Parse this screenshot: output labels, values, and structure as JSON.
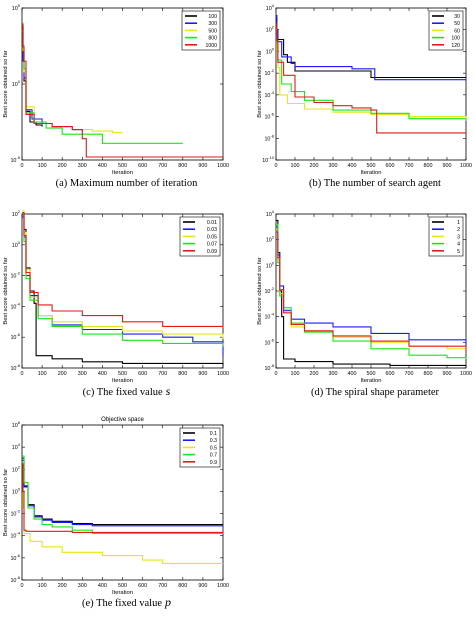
{
  "figure": {
    "captions": [
      "(a) Maximum number of iteration",
      "(b) The number of search agent",
      "(c) The fixed value",
      "(d) The spiral shape parameter",
      "(e)  The fixed value"
    ],
    "caption_symbols": [
      "",
      "",
      "s",
      "",
      "p"
    ]
  },
  "chart_data": [
    {
      "type": "line",
      "title": "",
      "xlabel": "Iteration",
      "ylabel": "Best score obtained so far",
      "xlim": [
        0,
        1000
      ],
      "xticks": [
        "0",
        "100",
        "200",
        "300",
        "400",
        "500",
        "600",
        "700",
        "800",
        "900",
        "1000"
      ],
      "ylog": true,
      "ylim_exp": [
        -5,
        5
      ],
      "yticks_exp": [
        5,
        0,
        -5
      ],
      "legend": "top-right",
      "series": [
        {
          "name": "100",
          "color": "#000000",
          "x": [
            1,
            5,
            10,
            20,
            40,
            70,
            100
          ],
          "y_exp": [
            3.7,
            2,
            0.2,
            -1.8,
            -2.5,
            -2.7,
            -2.8
          ]
        },
        {
          "name": "300",
          "color": "#1a1aff",
          "x": [
            1,
            5,
            10,
            20,
            50,
            100,
            150,
            200,
            250,
            300
          ],
          "y_exp": [
            3.8,
            1.5,
            0.4,
            -1.7,
            -2.3,
            -2.6,
            -2.8,
            -2.8,
            -3,
            -3.1
          ]
        },
        {
          "name": "500",
          "color": "#e6e619",
          "x": [
            1,
            5,
            10,
            20,
            60,
            150,
            250,
            350,
            450,
            500
          ],
          "y_exp": [
            3.5,
            2.2,
            0.8,
            -1.5,
            -2.6,
            -2.8,
            -3,
            -3.1,
            -3.2,
            -3.2
          ]
        },
        {
          "name": "800",
          "color": "#19e619",
          "x": [
            1,
            5,
            10,
            20,
            60,
            120,
            200,
            400,
            600,
            800
          ],
          "y_exp": [
            4,
            2.4,
            1,
            -1.9,
            -2.5,
            -2.9,
            -3.3,
            -3.9,
            -3.9,
            -3.9
          ]
        },
        {
          "name": "1000",
          "color": "#e61919",
          "x": [
            1,
            5,
            10,
            20,
            60,
            150,
            250,
            300,
            320,
            1000
          ],
          "y_exp": [
            3.9,
            2.5,
            1.5,
            -2,
            -2.6,
            -2.8,
            -3,
            -3.6,
            -4.8,
            -4.8
          ]
        }
      ]
    },
    {
      "type": "line",
      "title": "",
      "xlabel": "Iteration",
      "ylabel": "Best score obtained so far",
      "xlim": [
        0,
        1000
      ],
      "xticks": [
        "0",
        "100",
        "200",
        "300",
        "400",
        "500",
        "600",
        "700",
        "800",
        "900",
        "1000"
      ],
      "ylog": true,
      "ylim_exp": [
        -10,
        4
      ],
      "yticks_exp": [
        4,
        2,
        0,
        -2,
        -4,
        -6,
        -8,
        -10
      ],
      "legend": "top-right",
      "series": [
        {
          "name": "30",
          "color": "#000000",
          "x": [
            1,
            5,
            10,
            40,
            60,
            100,
            200,
            300,
            500,
            1000
          ],
          "y_exp": [
            3,
            2,
            1.1,
            -0.3,
            -1,
            -1.8,
            -1.8,
            -1.8,
            -2.4,
            -2.4
          ]
        },
        {
          "name": "50",
          "color": "#1a1aff",
          "x": [
            1,
            5,
            10,
            30,
            80,
            100,
            200,
            300,
            400,
            500,
            520,
            1000
          ],
          "y_exp": [
            3.3,
            2,
            0.9,
            -0.5,
            -1.1,
            -1.4,
            -1.4,
            -1.4,
            -1.6,
            -1.6,
            -2.6,
            -2.6
          ]
        },
        {
          "name": "60",
          "color": "#e6e619",
          "x": [
            1,
            5,
            10,
            20,
            60,
            150,
            300,
            500,
            700,
            1000
          ],
          "y_exp": [
            2,
            0,
            -1.5,
            -4,
            -4.8,
            -5.3,
            -5.6,
            -5.8,
            -6,
            -6.2
          ]
        },
        {
          "name": "100",
          "color": "#19e619",
          "x": [
            1,
            5,
            10,
            30,
            80,
            150,
            300,
            500,
            700,
            1000
          ],
          "y_exp": [
            2.3,
            0.9,
            -0.8,
            -3,
            -3.7,
            -4.5,
            -5.4,
            -5.7,
            -6.2,
            -6.4
          ]
        },
        {
          "name": "120",
          "color": "#e61919",
          "x": [
            1,
            5,
            10,
            40,
            100,
            200,
            300,
            400,
            500,
            530,
            1000
          ],
          "y_exp": [
            2.6,
            1,
            -1,
            -2.2,
            -4.2,
            -4.7,
            -5,
            -5.2,
            -5.4,
            -7.5,
            -7.5
          ]
        }
      ]
    },
    {
      "type": "line",
      "title": "",
      "xlabel": "Iteration",
      "ylabel": "Best score obtained so far",
      "xlim": [
        0,
        1000
      ],
      "xticks": [
        "0",
        "100",
        "200",
        "300",
        "400",
        "500",
        "600",
        "700",
        "800",
        "900",
        "1000"
      ],
      "ylog": true,
      "ylim_exp": [
        -8,
        2
      ],
      "yticks_exp": [
        2,
        0,
        -2,
        -4,
        -6,
        -8
      ],
      "legend": "top-right",
      "series": [
        {
          "name": "0.01",
          "color": "#000000",
          "x": [
            1,
            10,
            20,
            40,
            60,
            70,
            150,
            300,
            500,
            700,
            1000
          ],
          "y_exp": [
            2,
            1,
            -1.5,
            -3,
            -3.8,
            -7.2,
            -7.4,
            -7.6,
            -7.7,
            -7.7,
            -7.8
          ]
        },
        {
          "name": "0.03",
          "color": "#1a1aff",
          "x": [
            1,
            10,
            20,
            40,
            80,
            150,
            300,
            500,
            700,
            850,
            1000
          ],
          "y_exp": [
            1.8,
            0.5,
            -2,
            -3.3,
            -4.6,
            -5.2,
            -5.5,
            -5.8,
            -6,
            -6.3,
            -7.2
          ]
        },
        {
          "name": "0.05",
          "color": "#e6e619",
          "x": [
            1,
            10,
            20,
            40,
            80,
            150,
            300,
            500,
            700,
            1000
          ],
          "y_exp": [
            2.2,
            0.8,
            -1.6,
            -3.4,
            -4.6,
            -5,
            -5.3,
            -5.6,
            -5.8,
            -6.1
          ]
        },
        {
          "name": "0.07",
          "color": "#19e619",
          "x": [
            1,
            10,
            20,
            40,
            80,
            150,
            300,
            500,
            700,
            1000
          ],
          "y_exp": [
            1.9,
            0.2,
            -2.2,
            -3.6,
            -4.8,
            -5.3,
            -5.8,
            -6.2,
            -6.4,
            -6.6
          ]
        },
        {
          "name": "0.09",
          "color": "#e61919",
          "x": [
            1,
            10,
            20,
            40,
            80,
            150,
            300,
            500,
            700,
            1000
          ],
          "y_exp": [
            2.1,
            0.6,
            -1.8,
            -3.1,
            -3.9,
            -4.3,
            -4.6,
            -5,
            -5.3,
            -5.4
          ]
        }
      ]
    },
    {
      "type": "line",
      "title": "",
      "xlabel": "Iteration",
      "ylabel": "Best score obtained so far",
      "xlim": [
        0,
        1000
      ],
      "xticks": [
        "0",
        "100",
        "200",
        "300",
        "400",
        "500",
        "600",
        "700",
        "800",
        "900",
        "1000"
      ],
      "ylog": true,
      "ylim_exp": [
        -8,
        4
      ],
      "yticks_exp": [
        4,
        2,
        0,
        -2,
        -4,
        -6,
        -8
      ],
      "legend": "top-right",
      "series": [
        {
          "name": "1",
          "color": "#000000",
          "x": [
            1,
            10,
            20,
            30,
            40,
            100,
            300,
            600,
            1000
          ],
          "y_exp": [
            3.5,
            1,
            -2,
            -4,
            -7.3,
            -7.5,
            -7.7,
            -7.8,
            -7.8
          ]
        },
        {
          "name": "2",
          "color": "#1a1aff",
          "x": [
            1,
            10,
            20,
            40,
            80,
            150,
            300,
            500,
            700,
            1000
          ],
          "y_exp": [
            3,
            0.8,
            -1.6,
            -3.5,
            -4.2,
            -4.5,
            -4.8,
            -5.3,
            -5.8,
            -6.3
          ]
        },
        {
          "name": "3",
          "color": "#e6e619",
          "x": [
            1,
            10,
            20,
            40,
            80,
            150,
            300,
            500,
            700,
            900,
            1000
          ],
          "y_exp": [
            2.8,
            0.5,
            -2.2,
            -3.6,
            -4.8,
            -5.2,
            -5.6,
            -6,
            -6.3,
            -6.5,
            -6.5
          ]
        },
        {
          "name": "4",
          "color": "#19e619",
          "x": [
            1,
            10,
            20,
            40,
            80,
            150,
            300,
            500,
            700,
            900,
            1000
          ],
          "y_exp": [
            3.2,
            0.2,
            -2.4,
            -3.3,
            -4.5,
            -5.2,
            -5.9,
            -6.5,
            -7,
            -7.2,
            -7.3
          ]
        },
        {
          "name": "5",
          "color": "#e61919",
          "x": [
            1,
            10,
            20,
            40,
            80,
            150,
            300,
            500,
            700,
            1000
          ],
          "y_exp": [
            2.6,
            0.6,
            -1.9,
            -3.7,
            -4.6,
            -5.1,
            -5.5,
            -5.9,
            -6.3,
            -6.8
          ]
        }
      ]
    },
    {
      "type": "line",
      "title": "Objective space",
      "xlabel": "Iteration",
      "ylabel": "Best score obtained so far",
      "xlim": [
        0,
        1000
      ],
      "xticks": [
        "0",
        "100",
        "200",
        "300",
        "400",
        "500",
        "600",
        "700",
        "800",
        "900",
        "1000"
      ],
      "ylog": true,
      "ylim_exp": [
        -8,
        6
      ],
      "yticks_exp": [
        6,
        4,
        2,
        0,
        -2,
        -4,
        -6,
        -8
      ],
      "legend": "top-right",
      "series": [
        {
          "name": "0.1",
          "color": "#000000",
          "x": [
            1,
            10,
            30,
            60,
            100,
            150,
            250,
            350,
            1000
          ],
          "y_exp": [
            3,
            0.5,
            -1.2,
            -2.2,
            -2.5,
            -2.7,
            -2.9,
            -3,
            -3
          ]
        },
        {
          "name": "0.3",
          "color": "#1a1aff",
          "x": [
            1,
            10,
            30,
            60,
            100,
            150,
            250,
            350,
            1000
          ],
          "y_exp": [
            2.8,
            0.4,
            -1.3,
            -2.3,
            -2.6,
            -2.8,
            -3,
            -3.1,
            -3.1
          ]
        },
        {
          "name": "0.5",
          "color": "#e6e619",
          "x": [
            1,
            5,
            10,
            40,
            100,
            200,
            400,
            600,
            700,
            1000
          ],
          "y_exp": [
            2,
            -1.5,
            -3.8,
            -4.5,
            -5,
            -5.5,
            -5.8,
            -6.2,
            -6.5,
            -6.5
          ]
        },
        {
          "name": "0.7",
          "color": "#19e619",
          "x": [
            1,
            10,
            30,
            60,
            100,
            150,
            250,
            350,
            1000
          ],
          "y_exp": [
            3.2,
            0.8,
            -1.5,
            -2.5,
            -3,
            -3.2,
            -3.5,
            -3.8,
            -3.8
          ]
        },
        {
          "name": "0.9",
          "color": "#e61919",
          "x": [
            1,
            5,
            10,
            20,
            50,
            100,
            150,
            250,
            1000
          ],
          "y_exp": [
            2.5,
            0,
            -3.5,
            -3.6,
            -3.6,
            -3.6,
            -3.6,
            -3.7,
            -3.7
          ]
        }
      ]
    }
  ]
}
